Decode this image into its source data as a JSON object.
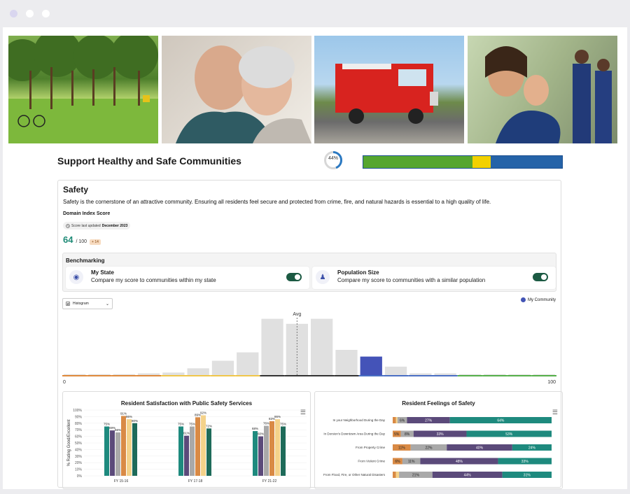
{
  "page": {
    "photos": [
      {
        "name": "park-photo"
      },
      {
        "name": "senior-couple-photo"
      },
      {
        "name": "fire-truck-photo"
      },
      {
        "name": "family-volunteers-photo"
      }
    ],
    "title": "Support Healthy and Safe Communities",
    "progress_percent": 44,
    "progress_label": "44%",
    "overall_bar": [
      {
        "color": "#55a62e",
        "value": 55
      },
      {
        "color": "#f2d100",
        "value": 9
      },
      {
        "color": "#2563a8",
        "value": 36
      }
    ]
  },
  "safety": {
    "title": "Safety",
    "description": "Safety is the cornerstone of an attractive community. Ensuring all residents feel secure and protected from crime, fire, and natural hazards is essential to a high quality of life.",
    "domain_label": "Domain Index Score",
    "updated_prefix": "Score last updated",
    "updated_date": "December 2023",
    "score": "64",
    "score_max": "/ 100",
    "score_badge": "+ 14"
  },
  "benchmarking": {
    "title": "Benchmarking",
    "options": [
      {
        "icon": "globe-icon",
        "title": "My State",
        "desc": "Compare my score to communities within my state",
        "on": true
      },
      {
        "icon": "people-icon",
        "title": "Population Size",
        "desc": "Compare my score to communities with a similar population",
        "on": true
      }
    ]
  },
  "histogram": {
    "select_label": "Histogram",
    "legend_label": "My Community",
    "avg_label": "Avg",
    "min_label": "0",
    "max_label": "100"
  },
  "chart_data": [
    {
      "type": "bar",
      "title": "",
      "categories": [
        "0-5",
        "5-10",
        "10-15",
        "15-20",
        "20-25",
        "25-30",
        "30-35",
        "35-40",
        "40-45",
        "45-50",
        "50-55",
        "55-60",
        "60-65",
        "65-70",
        "70-75",
        "75-80",
        "80-85",
        "85-90",
        "90-95",
        "95-100"
      ],
      "values": [
        1,
        1,
        1,
        2,
        3,
        8,
        17,
        27,
        67,
        61,
        67,
        30,
        22,
        10,
        2,
        2,
        1,
        1,
        0,
        0
      ],
      "highlight_index": 12,
      "avg_index": 9,
      "ylim": [
        0,
        70
      ],
      "range_colors": [
        "#e08a3c",
        "#e08a3c",
        "#e08a3c",
        "#e08a3c",
        "#f0c64a",
        "#f0c64a",
        "#f0c64a",
        "#f0c64a",
        "#333333",
        "#333333",
        "#333333",
        "#333333",
        "#4a6fc4",
        "#4a6fc4",
        "#4a6fc4",
        "#4a6fc4",
        "#55b04a",
        "#55b04a",
        "#55b04a",
        "#55b04a"
      ],
      "colors": {
        "bar": "#e0e0e0",
        "highlight": "#4453b8",
        "avg_line": "#777777"
      }
    },
    {
      "type": "bar",
      "title": "Resident Satisfaction with Public Safety Services",
      "ylabel": "% Rating Good/Excellent",
      "yticks": [
        "100%",
        "90%",
        "80%",
        "70%",
        "60%",
        "50%",
        "40%",
        "30%",
        "20%",
        "10%",
        "0%"
      ],
      "ylim": [
        0,
        100
      ],
      "categories": [
        "FY 15-16",
        "FY 17-18",
        "FY 21-22"
      ],
      "series_colors": [
        "#1e8a7e",
        "#5b4a7a",
        "#a9a9a9",
        "#d98a45",
        "#f4d28a",
        "#1e6b5a"
      ],
      "groups": [
        {
          "values": [
            75,
            69,
            66,
            91,
            86,
            80
          ],
          "labels": [
            "75%",
            "69%",
            "66%",
            "91%",
            "86%",
            "80%"
          ]
        },
        {
          "values": [
            75,
            61,
            75,
            89,
            92,
            72
          ],
          "labels": [
            "75%",
            "61%",
            "75%",
            "89%",
            "92%",
            "72%"
          ]
        },
        {
          "values": [
            68,
            60,
            76,
            83,
            86,
            75
          ],
          "labels": [
            "68%",
            "60%",
            "76%",
            "83%",
            "86%",
            "75%"
          ]
        }
      ]
    },
    {
      "type": "bar",
      "title": "Resident Feelings of Safety",
      "orientation": "horizontal-stacked",
      "segment_colors": [
        "#d98a45",
        "#f4d28a",
        "#a9a9a9",
        "#5b4a7a",
        "#1e8a7e"
      ],
      "rows": [
        {
          "label": "In your Neighborhood During the Day",
          "values": [
            2,
            1,
            6,
            27,
            64
          ],
          "labels": [
            "",
            "",
            "6%",
            "27%",
            "64%"
          ]
        },
        {
          "label": "In Dorsion's Downtown Area During the Day",
          "values": [
            5,
            0,
            8,
            33,
            53
          ],
          "labels": [
            "5%",
            "",
            "8%",
            "33%",
            "53%"
          ]
        },
        {
          "label": "From Property Crime",
          "values": [
            11,
            0,
            22,
            40,
            24
          ],
          "labels": [
            "11%",
            "",
            "22%",
            "40%",
            "24%"
          ]
        },
        {
          "label": "From Violent Crime",
          "values": [
            6,
            0,
            11,
            48,
            33
          ],
          "labels": [
            "6%",
            "",
            "11%",
            "48%",
            "33%"
          ]
        },
        {
          "label": "From Flood, Fire, or Other Natural Disasters",
          "values": [
            2,
            2,
            21,
            44,
            31
          ],
          "labels": [
            "",
            "",
            "21%",
            "44%",
            "31%"
          ]
        }
      ]
    }
  ]
}
